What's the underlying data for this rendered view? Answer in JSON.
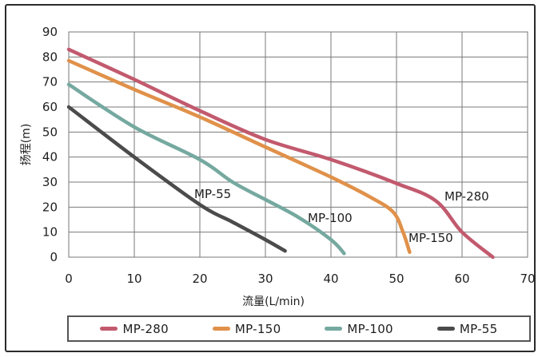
{
  "chart_data": {
    "type": "line",
    "xlabel": "流量(L/min)",
    "ylabel": "扬程(m)",
    "xlim": [
      0,
      70
    ],
    "ylim": [
      0,
      90
    ],
    "xticks": [
      "0",
      "10",
      "20",
      "30",
      "40",
      "50",
      "60",
      "70"
    ],
    "yticks": [
      "0",
      "10",
      "20",
      "30",
      "40",
      "50",
      "60",
      "70",
      "80",
      "90"
    ],
    "grid": true,
    "legend_position": "bottom",
    "series": [
      {
        "name": "MP-280",
        "color": "#c25a6e",
        "points": [
          [
            0,
            83
          ],
          [
            10,
            71
          ],
          [
            20,
            58.5
          ],
          [
            30,
            47
          ],
          [
            40,
            39
          ],
          [
            50,
            29.5
          ],
          [
            56,
            22.5
          ],
          [
            60,
            10
          ],
          [
            64.7,
            0
          ]
        ]
      },
      {
        "name": "MP-150",
        "color": "#e0914a",
        "points": [
          [
            0,
            78.5
          ],
          [
            10,
            67
          ],
          [
            20,
            56
          ],
          [
            30,
            44
          ],
          [
            40,
            32
          ],
          [
            46,
            24
          ],
          [
            49.5,
            18
          ],
          [
            51,
            10
          ],
          [
            52,
            2
          ]
        ]
      },
      {
        "name": "MP-100",
        "color": "#75a9a0",
        "points": [
          [
            0,
            69
          ],
          [
            10,
            52
          ],
          [
            20,
            39
          ],
          [
            25,
            30
          ],
          [
            30,
            23
          ],
          [
            35,
            16
          ],
          [
            40,
            7
          ],
          [
            42,
            1.5
          ]
        ]
      },
      {
        "name": "MP-55",
        "color": "#4b4b4b",
        "points": [
          [
            0,
            60
          ],
          [
            10,
            40
          ],
          [
            20,
            21
          ],
          [
            25,
            14
          ],
          [
            30,
            7
          ],
          [
            33,
            2.5
          ]
        ]
      }
    ]
  },
  "series_labels": {
    "mp280": "MP-280",
    "mp150": "MP-150",
    "mp100": "MP-100",
    "mp55": "MP-55"
  }
}
